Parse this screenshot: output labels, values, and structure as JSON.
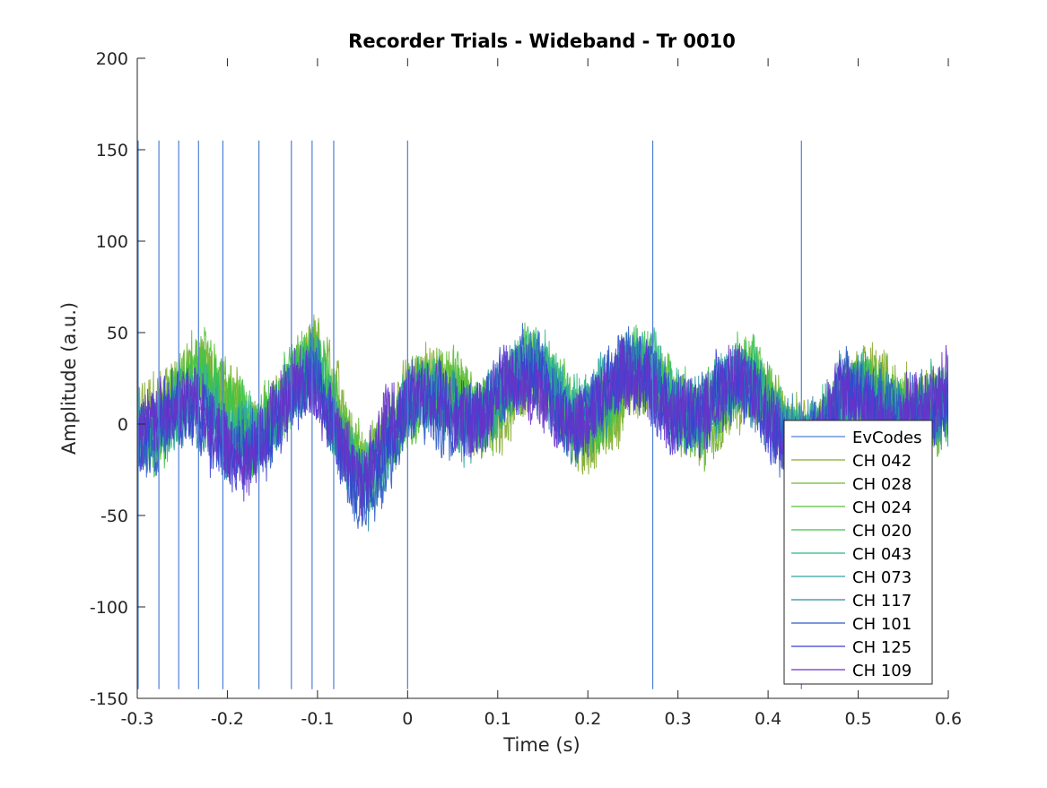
{
  "chart_data": {
    "type": "line",
    "title": "Recorder Trials - Wideband - Tr 0010",
    "xlabel": "Time (s)",
    "ylabel": "Amplitude (a.u.)",
    "xlim": [
      -0.3,
      0.6
    ],
    "ylim": [
      -150,
      200
    ],
    "xticks": [
      -0.3,
      -0.2,
      -0.1,
      0,
      0.1,
      0.2,
      0.3,
      0.4,
      0.5,
      0.6
    ],
    "xtick_labels": [
      "-0.3",
      "-0.2",
      "-0.1",
      "0",
      "0.1",
      "0.2",
      "0.3",
      "0.4",
      "0.5",
      "0.6"
    ],
    "yticks": [
      -150,
      -100,
      -50,
      0,
      50,
      100,
      150,
      200
    ],
    "ytick_labels": [
      "-150",
      "-100",
      "-50",
      "0",
      "50",
      "100",
      "150",
      "200"
    ],
    "grid": false,
    "legend_position": "bottom-right",
    "event_codes": {
      "name": "EvCodes",
      "color": "#4f7fd6",
      "times": [
        -0.299,
        -0.276,
        -0.254,
        -0.232,
        -0.205,
        -0.165,
        -0.129,
        -0.106,
        -0.082,
        0.0,
        0.272,
        0.437
      ],
      "y_range": [
        -145,
        155
      ]
    },
    "series": [
      {
        "name": "CH 042",
        "color": "#86ab2e",
        "envelope": [
          [
            -0.3,
            15
          ],
          [
            -0.27,
            30
          ],
          [
            -0.2,
            20
          ],
          [
            -0.1,
            35
          ],
          [
            -0.05,
            -25
          ],
          [
            0,
            5
          ],
          [
            0.05,
            25
          ],
          [
            0.15,
            20
          ],
          [
            0.3,
            5
          ],
          [
            0.45,
            10
          ],
          [
            0.57,
            30
          ],
          [
            0.6,
            5
          ]
        ]
      },
      {
        "name": "CH 028",
        "color": "#6cb831",
        "envelope": [
          [
            -0.3,
            10
          ],
          [
            -0.25,
            25
          ],
          [
            -0.2,
            25
          ],
          [
            -0.1,
            30
          ],
          [
            -0.05,
            -20
          ],
          [
            0,
            0
          ],
          [
            0.05,
            30
          ],
          [
            0.15,
            25
          ],
          [
            0.3,
            10
          ],
          [
            0.45,
            5
          ],
          [
            0.57,
            25
          ],
          [
            0.6,
            10
          ]
        ]
      },
      {
        "name": "CH 024",
        "color": "#55c135",
        "envelope": [
          [
            -0.3,
            5
          ],
          [
            -0.25,
            20
          ],
          [
            -0.2,
            30
          ],
          [
            -0.1,
            25
          ],
          [
            -0.05,
            -30
          ],
          [
            0,
            -10
          ],
          [
            0.05,
            35
          ],
          [
            0.15,
            30
          ],
          [
            0.3,
            15
          ],
          [
            0.45,
            10
          ],
          [
            0.57,
            20
          ],
          [
            0.6,
            15
          ]
        ]
      },
      {
        "name": "CH 020",
        "color": "#3dc24e",
        "envelope": [
          [
            -0.3,
            0
          ],
          [
            -0.25,
            15
          ],
          [
            -0.2,
            20
          ],
          [
            -0.1,
            30
          ],
          [
            -0.05,
            -25
          ],
          [
            0,
            -15
          ],
          [
            0.05,
            25
          ],
          [
            0.15,
            35
          ],
          [
            0.3,
            20
          ],
          [
            0.45,
            10
          ],
          [
            0.57,
            25
          ],
          [
            0.6,
            10
          ]
        ]
      },
      {
        "name": "CH 043",
        "color": "#2fba7f",
        "envelope": [
          [
            -0.3,
            5
          ],
          [
            -0.25,
            10
          ],
          [
            -0.2,
            15
          ],
          [
            -0.1,
            25
          ],
          [
            -0.05,
            -35
          ],
          [
            0,
            -5
          ],
          [
            0.05,
            20
          ],
          [
            0.15,
            40
          ],
          [
            0.3,
            15
          ],
          [
            0.45,
            15
          ],
          [
            0.57,
            20
          ],
          [
            0.6,
            5
          ]
        ]
      },
      {
        "name": "CH 073",
        "color": "#2ea5a0",
        "envelope": [
          [
            -0.3,
            0
          ],
          [
            -0.25,
            5
          ],
          [
            -0.2,
            10
          ],
          [
            -0.1,
            20
          ],
          [
            -0.05,
            -40
          ],
          [
            0,
            -10
          ],
          [
            0.05,
            15
          ],
          [
            0.15,
            35
          ],
          [
            0.3,
            20
          ],
          [
            0.45,
            10
          ],
          [
            0.57,
            15
          ],
          [
            0.6,
            0
          ]
        ]
      },
      {
        "name": "CH 117",
        "color": "#2d89a8",
        "envelope": [
          [
            -0.3,
            5
          ],
          [
            -0.25,
            0
          ],
          [
            -0.2,
            5
          ],
          [
            -0.1,
            25
          ],
          [
            -0.05,
            -45
          ],
          [
            0,
            -15
          ],
          [
            0.05,
            20
          ],
          [
            0.15,
            30
          ],
          [
            0.3,
            15
          ],
          [
            0.45,
            15
          ],
          [
            0.57,
            20
          ],
          [
            0.6,
            -5
          ]
        ]
      },
      {
        "name": "CH 101",
        "color": "#2f5bc7",
        "envelope": [
          [
            -0.3,
            0
          ],
          [
            -0.25,
            -5
          ],
          [
            -0.2,
            0
          ],
          [
            -0.1,
            20
          ],
          [
            -0.05,
            -50
          ],
          [
            0,
            -20
          ],
          [
            0.05,
            15
          ],
          [
            0.15,
            35
          ],
          [
            0.3,
            20
          ],
          [
            0.45,
            10
          ],
          [
            0.57,
            25
          ],
          [
            0.6,
            -10
          ]
        ]
      },
      {
        "name": "CH 125",
        "color": "#3b3ed3",
        "envelope": [
          [
            -0.3,
            5
          ],
          [
            -0.25,
            0
          ],
          [
            -0.2,
            -5
          ],
          [
            -0.1,
            15
          ],
          [
            -0.05,
            -40
          ],
          [
            0,
            -10
          ],
          [
            0.05,
            20
          ],
          [
            0.15,
            30
          ],
          [
            0.3,
            10
          ],
          [
            0.45,
            5
          ],
          [
            0.57,
            15
          ],
          [
            0.6,
            -5
          ]
        ]
      },
      {
        "name": "CH 109",
        "color": "#6a32c9",
        "envelope": [
          [
            -0.3,
            10
          ],
          [
            -0.25,
            5
          ],
          [
            -0.2,
            0
          ],
          [
            -0.1,
            20
          ],
          [
            -0.05,
            -35
          ],
          [
            0,
            -5
          ],
          [
            0.05,
            25
          ],
          [
            0.15,
            25
          ],
          [
            0.3,
            15
          ],
          [
            0.45,
            10
          ],
          [
            0.57,
            20
          ],
          [
            0.6,
            0
          ]
        ]
      }
    ]
  }
}
